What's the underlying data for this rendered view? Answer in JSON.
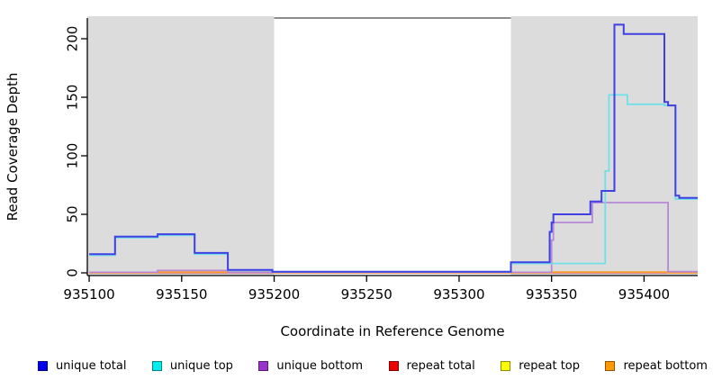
{
  "chart_data": {
    "type": "line",
    "subtype": "step",
    "title": "",
    "xlabel": "Coordinate in Reference Genome",
    "ylabel": "Read Coverage Depth",
    "xlim": [
      935099,
      935429
    ],
    "ylim": [
      -2.3,
      217.7
    ],
    "x_ticks": [
      935100,
      935150,
      935200,
      935250,
      935300,
      935350,
      935400
    ],
    "y_ticks": [
      0,
      50,
      100,
      150,
      200
    ],
    "grid": false,
    "plot_background": "#ffffff",
    "axis_color": "#000000",
    "shaded_regions": [
      {
        "x0": 935099,
        "x1": 935200,
        "color": "#dcdcdc"
      },
      {
        "x0": 935328,
        "x1": 935429,
        "color": "#dcdcdc"
      }
    ],
    "top_boundary_line": {
      "x0": 935200,
      "x1": 935328,
      "y": 217.7,
      "color": "#8c8c8c",
      "width": 2
    },
    "series": [
      {
        "name": "repeat top",
        "line_color": "#f0e040",
        "width": 1.6,
        "points": [
          [
            935100,
            0
          ],
          [
            935429,
            0
          ]
        ]
      },
      {
        "name": "repeat total",
        "line_color": "#d4608a",
        "width": 1.6,
        "points": [
          [
            935100,
            0
          ],
          [
            935429,
            0
          ]
        ]
      },
      {
        "name": "repeat bottom",
        "line_color": "#ff9f2a",
        "width": 1.8,
        "points": [
          [
            935100,
            0
          ],
          [
            935137,
            0
          ],
          [
            935137,
            0.7
          ],
          [
            935200,
            0.7
          ],
          [
            935200,
            0
          ],
          [
            935350,
            0
          ],
          [
            935350,
            0.7
          ],
          [
            935413,
            0.7
          ],
          [
            935413,
            0
          ],
          [
            935429,
            0
          ]
        ]
      },
      {
        "name": "unique bottom",
        "line_color": "#b888d8",
        "width": 1.8,
        "points": [
          [
            935100,
            0.5
          ],
          [
            935137,
            0.5
          ],
          [
            935137,
            2
          ],
          [
            935175,
            2
          ],
          [
            935175,
            0.5
          ],
          [
            935350,
            0.5
          ],
          [
            935350,
            28
          ],
          [
            935351,
            28
          ],
          [
            935351,
            43
          ],
          [
            935372,
            43
          ],
          [
            935372,
            60
          ],
          [
            935413,
            60
          ],
          [
            935413,
            1
          ],
          [
            935429,
            1
          ]
        ]
      },
      {
        "name": "unique top",
        "line_color": "#6fe0ea",
        "width": 1.8,
        "points": [
          [
            935100,
            15
          ],
          [
            935114,
            15
          ],
          [
            935114,
            30
          ],
          [
            935137,
            30
          ],
          [
            935137,
            32
          ],
          [
            935157,
            32
          ],
          [
            935157,
            16
          ],
          [
            935175,
            16
          ],
          [
            935175,
            2
          ],
          [
            935199,
            2
          ],
          [
            935199,
            0.8
          ],
          [
            935328,
            0.8
          ],
          [
            935328,
            8
          ],
          [
            935379,
            8
          ],
          [
            935379,
            87
          ],
          [
            935381,
            87
          ],
          [
            935381,
            152
          ],
          [
            935391,
            152
          ],
          [
            935391,
            144
          ],
          [
            935411,
            144
          ],
          [
            935411,
            143
          ],
          [
            935417,
            143
          ],
          [
            935417,
            63
          ],
          [
            935429,
            63
          ]
        ]
      },
      {
        "name": "unique total",
        "line_color": "#4040e2",
        "width": 2,
        "points": [
          [
            935100,
            16
          ],
          [
            935114,
            16
          ],
          [
            935114,
            31
          ],
          [
            935137,
            31
          ],
          [
            935137,
            33
          ],
          [
            935157,
            33
          ],
          [
            935157,
            17
          ],
          [
            935175,
            17
          ],
          [
            935175,
            2.5
          ],
          [
            935199,
            2.5
          ],
          [
            935199,
            1
          ],
          [
            935328,
            1
          ],
          [
            935328,
            9
          ],
          [
            935349,
            9
          ],
          [
            935349,
            35
          ],
          [
            935350,
            35
          ],
          [
            935350,
            43
          ],
          [
            935351,
            43
          ],
          [
            935351,
            50
          ],
          [
            935371,
            50
          ],
          [
            935371,
            61
          ],
          [
            935377,
            61
          ],
          [
            935377,
            70
          ],
          [
            935384,
            70
          ],
          [
            935384,
            212
          ],
          [
            935389,
            212
          ],
          [
            935389,
            204
          ],
          [
            935411,
            204
          ],
          [
            935411,
            146
          ],
          [
            935413,
            146
          ],
          [
            935413,
            143
          ],
          [
            935417,
            143
          ],
          [
            935417,
            66
          ],
          [
            935419,
            66
          ],
          [
            935419,
            64
          ],
          [
            935429,
            64
          ]
        ]
      }
    ],
    "legend": {
      "position": "bottom",
      "items": [
        {
          "label": "unique total",
          "color": "#0000ee"
        },
        {
          "label": "unique top",
          "color": "#00eeee"
        },
        {
          "label": "unique bottom",
          "color": "#9a32cd"
        },
        {
          "label": "repeat total",
          "color": "#ee0000"
        },
        {
          "label": "repeat top",
          "color": "#ffff00"
        },
        {
          "label": "repeat bottom",
          "color": "#ff9900"
        }
      ]
    }
  }
}
